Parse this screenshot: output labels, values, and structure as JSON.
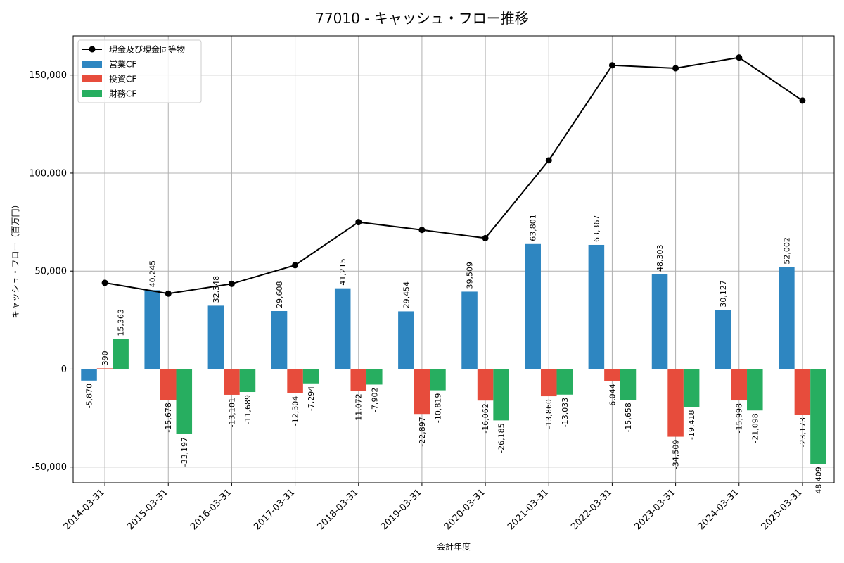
{
  "chart_data": {
    "type": "bar",
    "title": "77010 - キャッシュ・フロー推移",
    "xlabel": "会計年度",
    "ylabel": "キャッシュ・フロー（百万円）",
    "ylim": [
      -58000,
      170000
    ],
    "yticks": [
      -50000,
      0,
      50000,
      100000,
      150000
    ],
    "ytick_labels": [
      "-50,000",
      "0",
      "50,000",
      "100,000",
      "150,000"
    ],
    "grid": true,
    "legend_position": "top-left",
    "categories": [
      "2014-03-31",
      "2015-03-31",
      "2016-03-31",
      "2017-03-31",
      "2018-03-31",
      "2019-03-31",
      "2020-03-31",
      "2021-03-31",
      "2022-03-31",
      "2023-03-31",
      "2024-03-31",
      "2025-03-31"
    ],
    "series": [
      {
        "name": "現金及び現金同等物",
        "kind": "line",
        "color": "#000000",
        "values": [
          44000,
          38500,
          43500,
          53000,
          75000,
          71000,
          66800,
          106500,
          155000,
          153500,
          159000,
          137000
        ]
      },
      {
        "name": "営業CF",
        "kind": "bar",
        "color": "#2e86c1",
        "values": [
          -5870,
          40245,
          32348,
          29608,
          41215,
          29454,
          39509,
          63801,
          63367,
          48303,
          30127,
          52002
        ],
        "labels": [
          "-5,870",
          "40,245",
          "32,348",
          "29,608",
          "41,215",
          "29,454",
          "39,509",
          "63,801",
          "63,367",
          "48,303",
          "30,127",
          "52,002"
        ]
      },
      {
        "name": "投資CF",
        "kind": "bar",
        "color": "#e74c3c",
        "values": [
          390,
          -15678,
          -13101,
          -12304,
          -11072,
          -22897,
          -16062,
          -13860,
          -6044,
          -34509,
          -15998,
          -23173
        ],
        "labels": [
          "390",
          "-15,678",
          "-13,101",
          "-12,304",
          "-11,072",
          "-22,897",
          "-16,062",
          "-13,860",
          "-6,044",
          "-34,509",
          "-15,998",
          "-23,173"
        ]
      },
      {
        "name": "財務CF",
        "kind": "bar",
        "color": "#27ae60",
        "values": [
          15363,
          -33197,
          -11689,
          -7294,
          -7902,
          -10819,
          -26185,
          -13033,
          -15658,
          -19418,
          -21098,
          -48409
        ],
        "labels": [
          "15,363",
          "-33,197",
          "-11,689",
          "-7,294",
          "-7,902",
          "-10,819",
          "-26,185",
          "-13,033",
          "-15,658",
          "-19,418",
          "-21,098",
          "-48,409"
        ]
      }
    ]
  }
}
